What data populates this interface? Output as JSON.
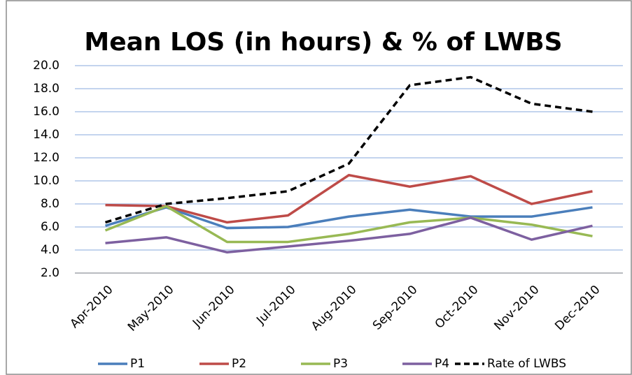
{
  "chart_data": {
    "type": "line",
    "title": "Mean LOS (in hours) & % of LWBS",
    "categories": [
      "Apr-2010",
      "May-2010",
      "Jun-2010",
      "Jul-2010",
      "Aug-2010",
      "Sep-2010",
      "Oct-2010",
      "Nov-2010",
      "Dec-2010"
    ],
    "series": [
      {
        "name": "P1",
        "color": "#4a7ebb",
        "line_style": "solid",
        "values": [
          6.1,
          7.7,
          5.9,
          6.0,
          6.9,
          7.5,
          6.9,
          6.9,
          7.7
        ]
      },
      {
        "name": "P2",
        "color": "#be4b48",
        "line_style": "solid",
        "values": [
          7.9,
          7.8,
          6.4,
          7.0,
          10.5,
          9.5,
          10.4,
          8.0,
          9.1
        ]
      },
      {
        "name": "P3",
        "color": "#98b954",
        "line_style": "solid",
        "values": [
          5.7,
          7.8,
          4.7,
          4.7,
          5.4,
          6.4,
          6.8,
          6.2,
          5.2
        ]
      },
      {
        "name": "P4",
        "color": "#7d60a0",
        "line_style": "solid",
        "values": [
          4.6,
          5.1,
          3.8,
          4.3,
          4.8,
          5.4,
          6.8,
          4.9,
          6.1
        ]
      },
      {
        "name": "Rate of LWBS",
        "color": "#000000",
        "line_style": "dashed",
        "values": [
          6.4,
          8.0,
          8.5,
          9.1,
          11.5,
          18.3,
          19.0,
          16.7,
          16.0
        ]
      }
    ],
    "ylim": [
      2,
      20
    ],
    "yticks": [
      {
        "value": 2,
        "label": "2.0"
      },
      {
        "value": 4,
        "label": "4.0"
      },
      {
        "value": 6,
        "label": "6.0"
      },
      {
        "value": 8,
        "label": "8.0"
      },
      {
        "value": 10,
        "label": "10.0"
      },
      {
        "value": 12,
        "label": "12.0"
      },
      {
        "value": 14,
        "label": "14.0"
      },
      {
        "value": 16,
        "label": "16.0"
      },
      {
        "value": 18,
        "label": "18.0"
      },
      {
        "value": 20,
        "label": "20.0"
      }
    ],
    "grid": true,
    "legend": "bottom"
  }
}
